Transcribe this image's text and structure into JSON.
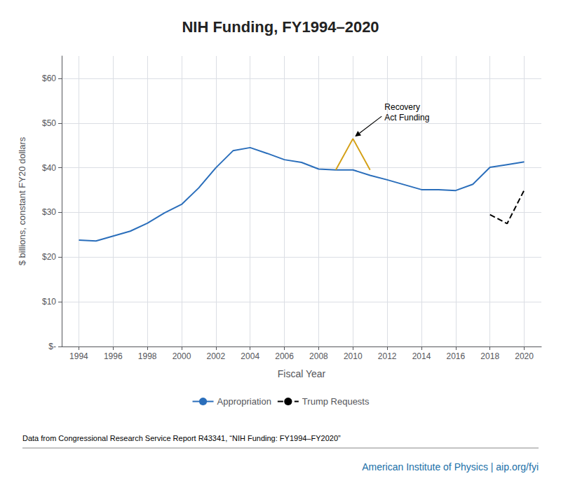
{
  "chart_data": {
    "type": "line",
    "title": "NIH Funding, FY1994–2020",
    "xlabel": "Fiscal Year",
    "ylabel": "$ billions, constant FY20 dollars",
    "source": "Data from Congressional Research Service Report R43341, “NIH Funding: FY1994–FY2020”",
    "credit": "American Institute of Physics | aip.org/fyi",
    "series": [
      {
        "name": "Appropriation",
        "color": "#2a6ebb",
        "line_style": "solid",
        "x": [
          1994,
          1995,
          1996,
          1997,
          1998,
          1999,
          2000,
          2001,
          2002,
          2003,
          2004,
          2005,
          2006,
          2007,
          2008,
          2009,
          2010,
          2011,
          2012,
          2013,
          2014,
          2015,
          2016,
          2017,
          2018,
          2019,
          2020
        ],
        "values": [
          23.8,
          23.6,
          24.7,
          25.8,
          27.6,
          29.9,
          31.8,
          35.5,
          40.0,
          43.8,
          44.5,
          43.2,
          41.8,
          41.2,
          39.7,
          39.5,
          39.5,
          38.3,
          37.3,
          36.2,
          35.1,
          35.1,
          34.9,
          36.3,
          40.1,
          40.7,
          41.3
        ]
      },
      {
        "color": "#d4a017",
        "line_style": "solid",
        "x": [
          2009,
          2010,
          2011
        ],
        "values": [
          39.5,
          46.5,
          39.5
        ]
      },
      {
        "name": "Trump Requests",
        "color": "#000000",
        "line_style": "dashed",
        "x": [
          2018,
          2019,
          2020
        ],
        "values": [
          29.5,
          27.5,
          35.0
        ]
      }
    ],
    "annotations": [
      {
        "text": "Recovery\nAct Funding",
        "x": 2010,
        "y": 46.5
      }
    ],
    "xlim": [
      1993,
      2021
    ],
    "xticks": [
      1994,
      1996,
      1998,
      2000,
      2002,
      2004,
      2006,
      2008,
      2010,
      2012,
      2014,
      2016,
      2018,
      2020
    ],
    "ylim": [
      0,
      65
    ],
    "yticks": [
      {
        "value": 0,
        "label": "$-"
      },
      {
        "value": 10,
        "label": "$10"
      },
      {
        "value": 20,
        "label": "$20"
      },
      {
        "value": 30,
        "label": "$30"
      },
      {
        "value": 40,
        "label": "$40"
      },
      {
        "value": 50,
        "label": "$50"
      },
      {
        "value": 60,
        "label": "$60"
      }
    ],
    "grid": true,
    "legend": "bottom"
  }
}
